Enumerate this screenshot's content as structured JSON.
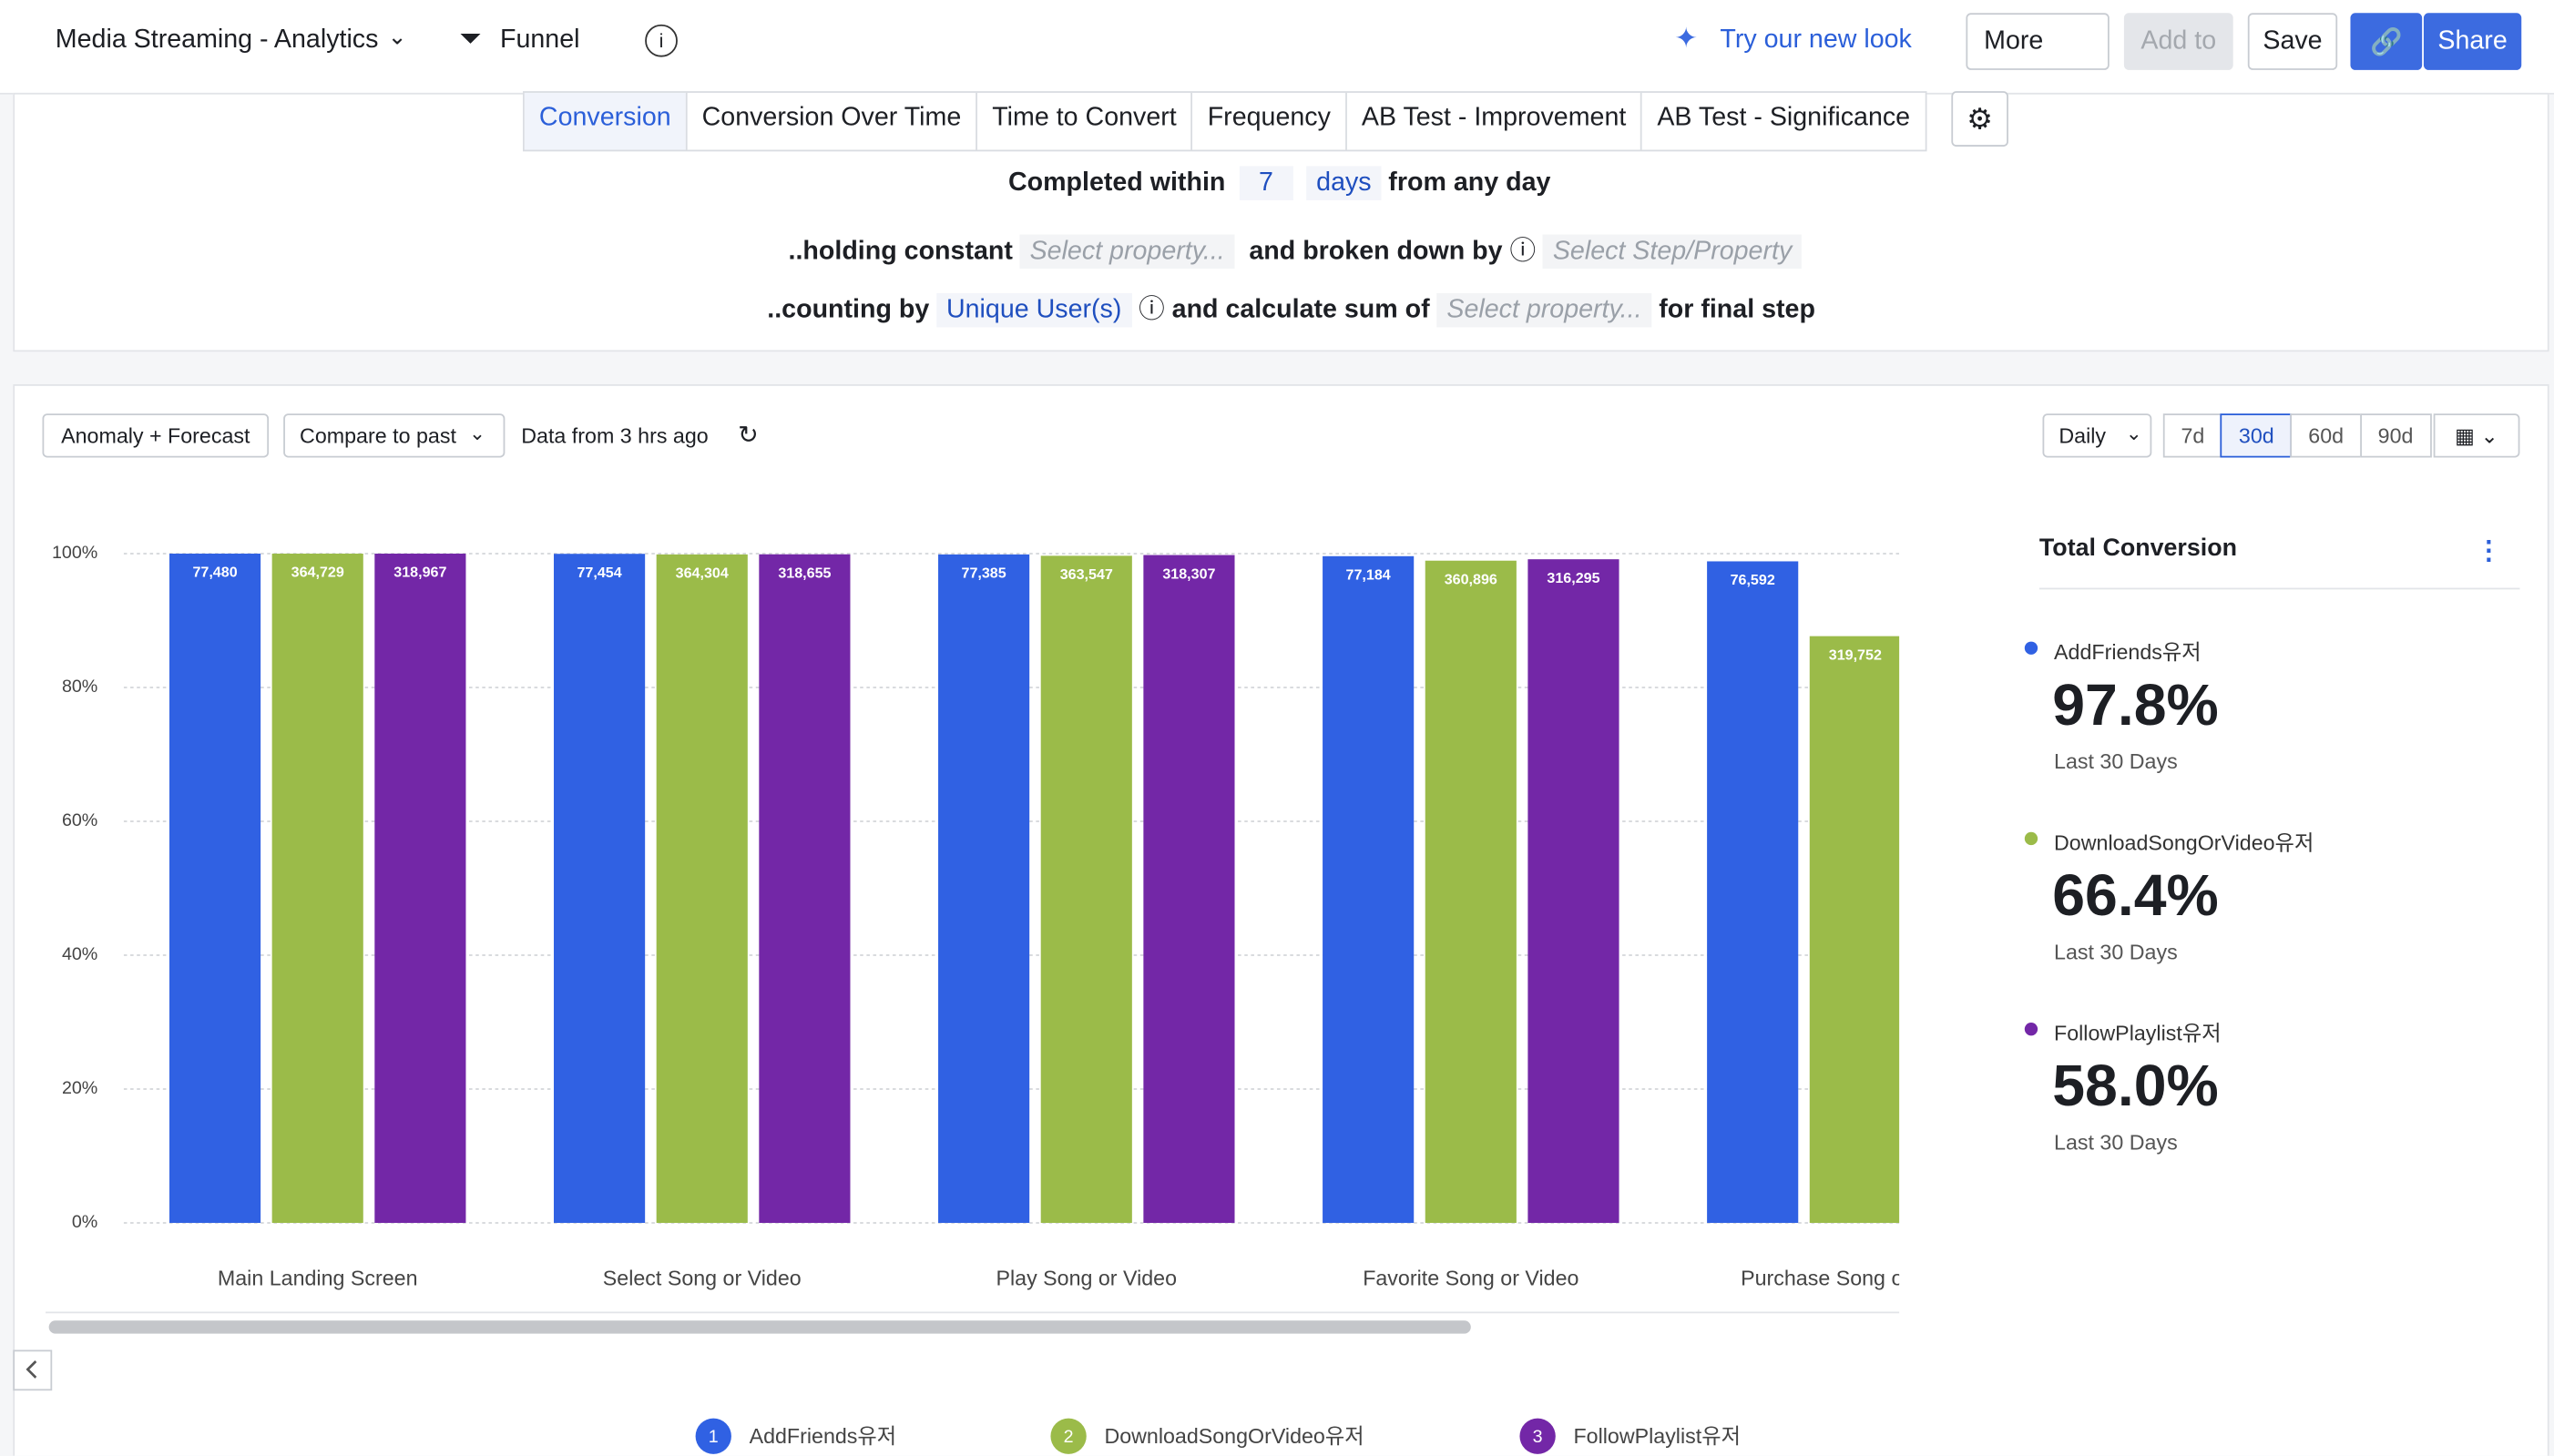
{
  "header": {
    "title": "Media Streaming - Analytics",
    "view": "Funnel",
    "try_new": "Try our new look",
    "more": "More",
    "add_to": "Add to",
    "save": "Save",
    "share": "Share"
  },
  "tabs": [
    "Conversion",
    "Conversion Over Time",
    "Time to Convert",
    "Frequency",
    "AB Test - Improvement",
    "AB Test - Significance"
  ],
  "settings": {
    "completed_within": "Completed within",
    "days_value": "7",
    "days": "days",
    "from_any_day": "from any day",
    "holding_constant": "..holding constant",
    "select_property": "Select property...",
    "broken_down_by": "and broken down by",
    "select_step": "Select Step/Property",
    "counting_by": "..counting by",
    "unique_users": "Unique User(s)",
    "calculate_sum": "and calculate sum of",
    "select_property_2": "Select property...",
    "final_step": "for final step"
  },
  "toolbar": {
    "anomaly": "Anomaly + Forecast",
    "compare": "Compare to past",
    "data_from": "Data from 3 hrs ago",
    "interval": "Daily",
    "ranges": [
      "7d",
      "30d",
      "60d",
      "90d"
    ]
  },
  "chart_data": {
    "type": "bar",
    "categories": [
      "Main Landing Screen",
      "Select Song or Video",
      "Play Song or Video",
      "Favorite Song or Video",
      "Purchase Song or Video"
    ],
    "series": [
      {
        "name": "AddFriends유저",
        "color": "#3061e3",
        "values": [
          100,
          99.97,
          99.88,
          99.62,
          98.85
        ],
        "value_labels": [
          "77,480",
          "77,454",
          "77,385",
          "77,184",
          "76,592"
        ]
      },
      {
        "name": "DownloadSongOrVideo유저",
        "color": "#9bbb49",
        "values": [
          100,
          99.88,
          99.68,
          98.95,
          87.67
        ],
        "value_labels": [
          "364,729",
          "364,304",
          "363,547",
          "360,896",
          "319,752"
        ]
      },
      {
        "name": "FollowPlaylist유저",
        "color": "#7327a7",
        "values": [
          100,
          99.9,
          99.79,
          99.16,
          null
        ],
        "value_labels": [
          "318,967",
          "318,655",
          "318,307",
          "316,295",
          null
        ]
      }
    ],
    "ylim": [
      0,
      100
    ],
    "yticks": [
      {
        "value": 0,
        "label": "0%"
      },
      {
        "value": 20,
        "label": "20%"
      },
      {
        "value": 40,
        "label": "40%"
      },
      {
        "value": 60,
        "label": "60%"
      },
      {
        "value": 80,
        "label": "80%"
      },
      {
        "value": 100,
        "label": "100%"
      }
    ],
    "grid": true,
    "legend_numbers": [
      "1",
      "2",
      "3"
    ]
  },
  "summary": {
    "title": "Total Conversion",
    "items": [
      {
        "name": "AddFriends유저",
        "value": "97.8%",
        "period": "Last 30 Days",
        "color": "#3061e3"
      },
      {
        "name": "DownloadSongOrVideo유저",
        "value": "66.4%",
        "period": "Last 30 Days",
        "color": "#9bbb49"
      },
      {
        "name": "FollowPlaylist유저",
        "value": "58.0%",
        "period": "Last 30 Days",
        "color": "#7327a7"
      }
    ]
  }
}
